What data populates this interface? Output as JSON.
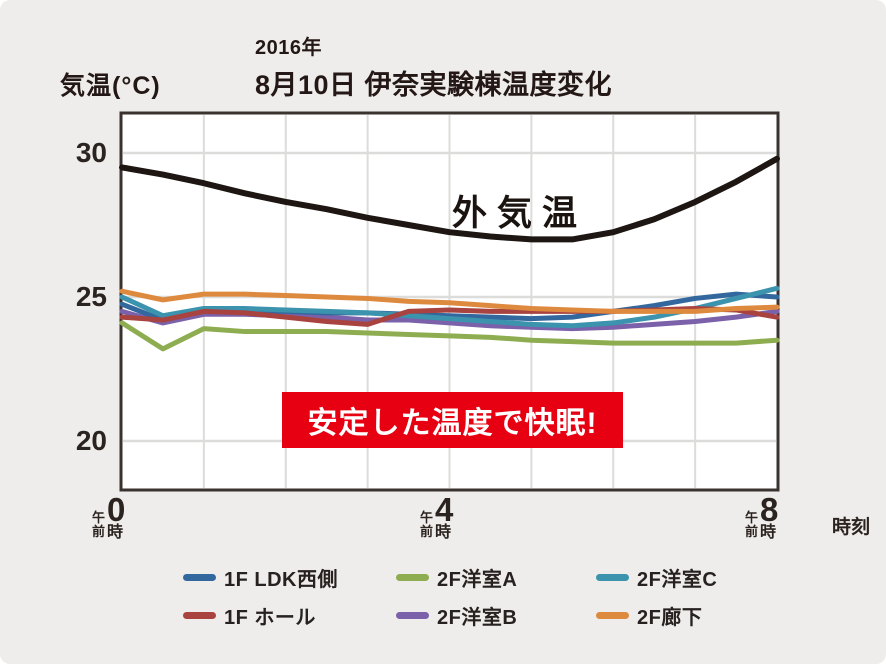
{
  "header": {
    "y_axis_label": "気温(°C)",
    "title_year": "2016年",
    "title_main": "8月10日 伊奈実験棟温度変化"
  },
  "axes": {
    "y_ticks": [
      "30",
      "25",
      "20"
    ],
    "x_ticks": [
      {
        "period_top": "午",
        "period_bottom": "前",
        "digit": "0",
        "suffix": "時"
      },
      {
        "period_top": "午",
        "period_bottom": "前",
        "digit": "4",
        "suffix": "時"
      },
      {
        "period_top": "午",
        "period_bottom": "前",
        "digit": "8",
        "suffix": "時"
      }
    ],
    "x_unit_label": "時刻"
  },
  "annotations": {
    "outside_air_label": "外気温",
    "banner_text": "安定した温度で快眠!",
    "banner_color": "#e60012"
  },
  "legend": [
    {
      "label": "1F LDK西側",
      "color": "#33689e"
    },
    {
      "label": "2F洋室A",
      "color": "#8ead50"
    },
    {
      "label": "2F洋室C",
      "color": "#3c93ad"
    },
    {
      "label": "1F ホール",
      "color": "#a84340"
    },
    {
      "label": "2F洋室B",
      "color": "#7a61a9"
    },
    {
      "label": "2F廊下",
      "color": "#dd8a3f"
    }
  ],
  "chart_data": {
    "type": "line",
    "title": "2016年 8月10日 伊奈実験棟温度変化",
    "xlabel": "時刻(午前0時〜午前8時)",
    "ylabel": "気温(°C)",
    "xlim": [
      0,
      8
    ],
    "ylim": [
      18.3,
      31.4
    ],
    "x_tick_values": [
      0,
      4,
      8
    ],
    "y_gridlines": [
      20,
      25,
      30
    ],
    "x_gridline_interval_hours": 1,
    "grid": "on",
    "legend_position": "bottom",
    "x_hours": [
      0,
      0.5,
      1,
      1.5,
      2,
      2.5,
      3,
      3.5,
      4,
      4.5,
      5,
      5.5,
      6,
      6.5,
      7,
      7.5,
      8
    ],
    "series": [
      {
        "name": "2F洋室A",
        "color": "#8ead50",
        "width": 5,
        "values": [
          24.1,
          23.2,
          23.9,
          23.8,
          23.8,
          23.8,
          23.75,
          23.7,
          23.65,
          23.6,
          23.5,
          23.45,
          23.4,
          23.4,
          23.4,
          23.4,
          23.5
        ]
      },
      {
        "name": "2F洋室B",
        "color": "#7a61a9",
        "width": 5,
        "values": [
          24.5,
          24.1,
          24.4,
          24.4,
          24.35,
          24.3,
          24.2,
          24.2,
          24.1,
          24.0,
          23.95,
          23.9,
          23.95,
          24.05,
          24.15,
          24.3,
          24.5
        ]
      },
      {
        "name": "1F LDK西側",
        "color": "#33689e",
        "width": 5,
        "values": [
          24.75,
          24.2,
          24.55,
          24.5,
          24.5,
          24.45,
          24.45,
          24.4,
          24.35,
          24.3,
          24.25,
          24.3,
          24.5,
          24.7,
          24.95,
          25.1,
          25.0
        ]
      },
      {
        "name": "2F洋室C",
        "color": "#3c93ad",
        "width": 5,
        "values": [
          25.0,
          24.35,
          24.6,
          24.6,
          24.55,
          24.5,
          24.45,
          24.35,
          24.25,
          24.15,
          24.05,
          24.0,
          24.1,
          24.3,
          24.6,
          24.95,
          25.3
        ]
      },
      {
        "name": "1F ホール",
        "color": "#a84340",
        "width": 5,
        "values": [
          24.3,
          24.2,
          24.5,
          24.45,
          24.3,
          24.15,
          24.05,
          24.5,
          24.55,
          24.5,
          24.5,
          24.5,
          24.5,
          24.55,
          24.6,
          24.55,
          24.3
        ]
      },
      {
        "name": "2F廊下",
        "color": "#dd8a3f",
        "width": 5,
        "values": [
          25.2,
          24.9,
          25.1,
          25.1,
          25.05,
          25.0,
          24.95,
          24.85,
          24.8,
          24.7,
          24.6,
          24.55,
          24.5,
          24.5,
          24.5,
          24.6,
          24.65
        ]
      },
      {
        "name": "外気温",
        "color": "#1d1612",
        "width": 6,
        "values": [
          29.5,
          29.25,
          28.95,
          28.6,
          28.3,
          28.05,
          27.75,
          27.5,
          27.25,
          27.1,
          27.0,
          27.0,
          27.25,
          27.7,
          28.3,
          29.0,
          29.8
        ]
      }
    ]
  }
}
